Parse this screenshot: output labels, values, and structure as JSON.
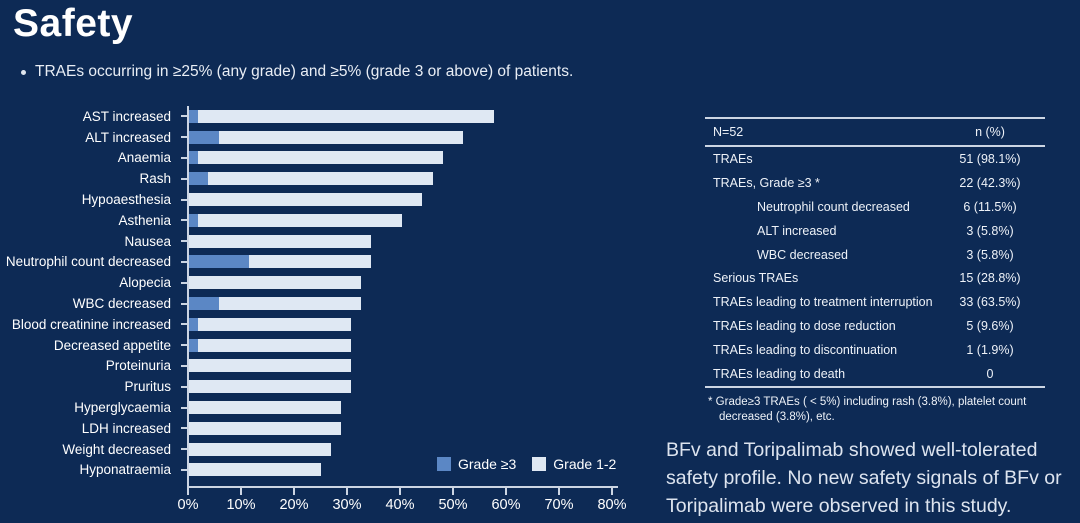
{
  "colors": {
    "background": "#0d2a55",
    "grade3": "#5b87c5",
    "grade12": "#dfe8f3",
    "axis": "#ccd5e3",
    "text": "#ffffff"
  },
  "header": {
    "title": "Safety",
    "bullet": "TRAEs occurring in ≥25% (any grade) and ≥5% (grade 3 or above) of patients."
  },
  "chart_data": {
    "type": "bar",
    "orientation": "horizontal",
    "stacked": true,
    "title": "",
    "xlabel": "",
    "ylabel": "",
    "xlim": [
      0,
      80
    ],
    "x_tick_labels": [
      "0%",
      "10%",
      "20%",
      "30%",
      "40%",
      "50%",
      "60%",
      "70%",
      "80%"
    ],
    "grid": false,
    "legend_position": "bottom-right-inside",
    "categories": [
      "AST increased",
      "ALT increased",
      "Anaemia",
      "Rash",
      "Hypoaesthesia",
      "Asthenia",
      "Nausea",
      "Neutrophil count decreased",
      "Alopecia",
      "WBC decreased",
      "Blood creatinine increased",
      "Decreased appetite",
      "Proteinuria",
      "Pruritus",
      "Hyperglycaemia",
      "LDH increased",
      "Weight decreased",
      "Hyponatraemia"
    ],
    "series": [
      {
        "name": "Grade ≥3",
        "color": "#5b87c5",
        "values": [
          1.9,
          5.8,
          1.9,
          3.8,
          0,
          1.9,
          0,
          11.5,
          0,
          5.8,
          1.9,
          1.9,
          0,
          0,
          0,
          0,
          0,
          0
        ]
      },
      {
        "name": "Grade 1-2",
        "color": "#dfe8f3",
        "values": [
          55.8,
          46.1,
          46.2,
          42.4,
          44.2,
          38.5,
          34.6,
          23.1,
          32.7,
          26.9,
          28.9,
          28.9,
          30.8,
          30.8,
          28.8,
          28.8,
          26.9,
          25.0
        ]
      }
    ],
    "totals": [
      57.7,
      51.9,
      48.1,
      46.2,
      44.2,
      40.4,
      34.6,
      34.6,
      32.7,
      32.7,
      30.8,
      30.8,
      30.8,
      30.8,
      28.8,
      28.8,
      26.9,
      25.0
    ]
  },
  "table": {
    "header": {
      "col1": "N=52",
      "col2": "n (%)"
    },
    "rows": [
      {
        "label": "TRAEs",
        "value": "51 (98.1%)",
        "indent": false
      },
      {
        "label": "TRAEs, Grade ≥3 *",
        "value": "22 (42.3%)",
        "indent": false
      },
      {
        "label": "Neutrophil count decreased",
        "value": "6 (11.5%)",
        "indent": true
      },
      {
        "label": "ALT increased",
        "value": "3 (5.8%)",
        "indent": true
      },
      {
        "label": "WBC decreased",
        "value": "3 (5.8%)",
        "indent": true
      },
      {
        "label": "Serious TRAEs",
        "value": "15 (28.8%)",
        "indent": false
      },
      {
        "label": "TRAEs leading to treatment interruption",
        "value": "33 (63.5%)",
        "indent": false
      },
      {
        "label": "TRAEs leading to dose reduction",
        "value": "5 (9.6%)",
        "indent": false
      },
      {
        "label": "TRAEs leading to discontinuation",
        "value": "1 (1.9%)",
        "indent": false
      },
      {
        "label": "TRAEs leading to death",
        "value": "0",
        "indent": false
      }
    ],
    "footnote": "* Grade≥3 TRAEs ( < 5%) including rash (3.8%), platelet count decreased (3.8%), etc."
  },
  "summary": "BFv and Toripalimab showed well-tolerated safety profile. No new safety signals of BFv or Toripalimab were observed in this study."
}
